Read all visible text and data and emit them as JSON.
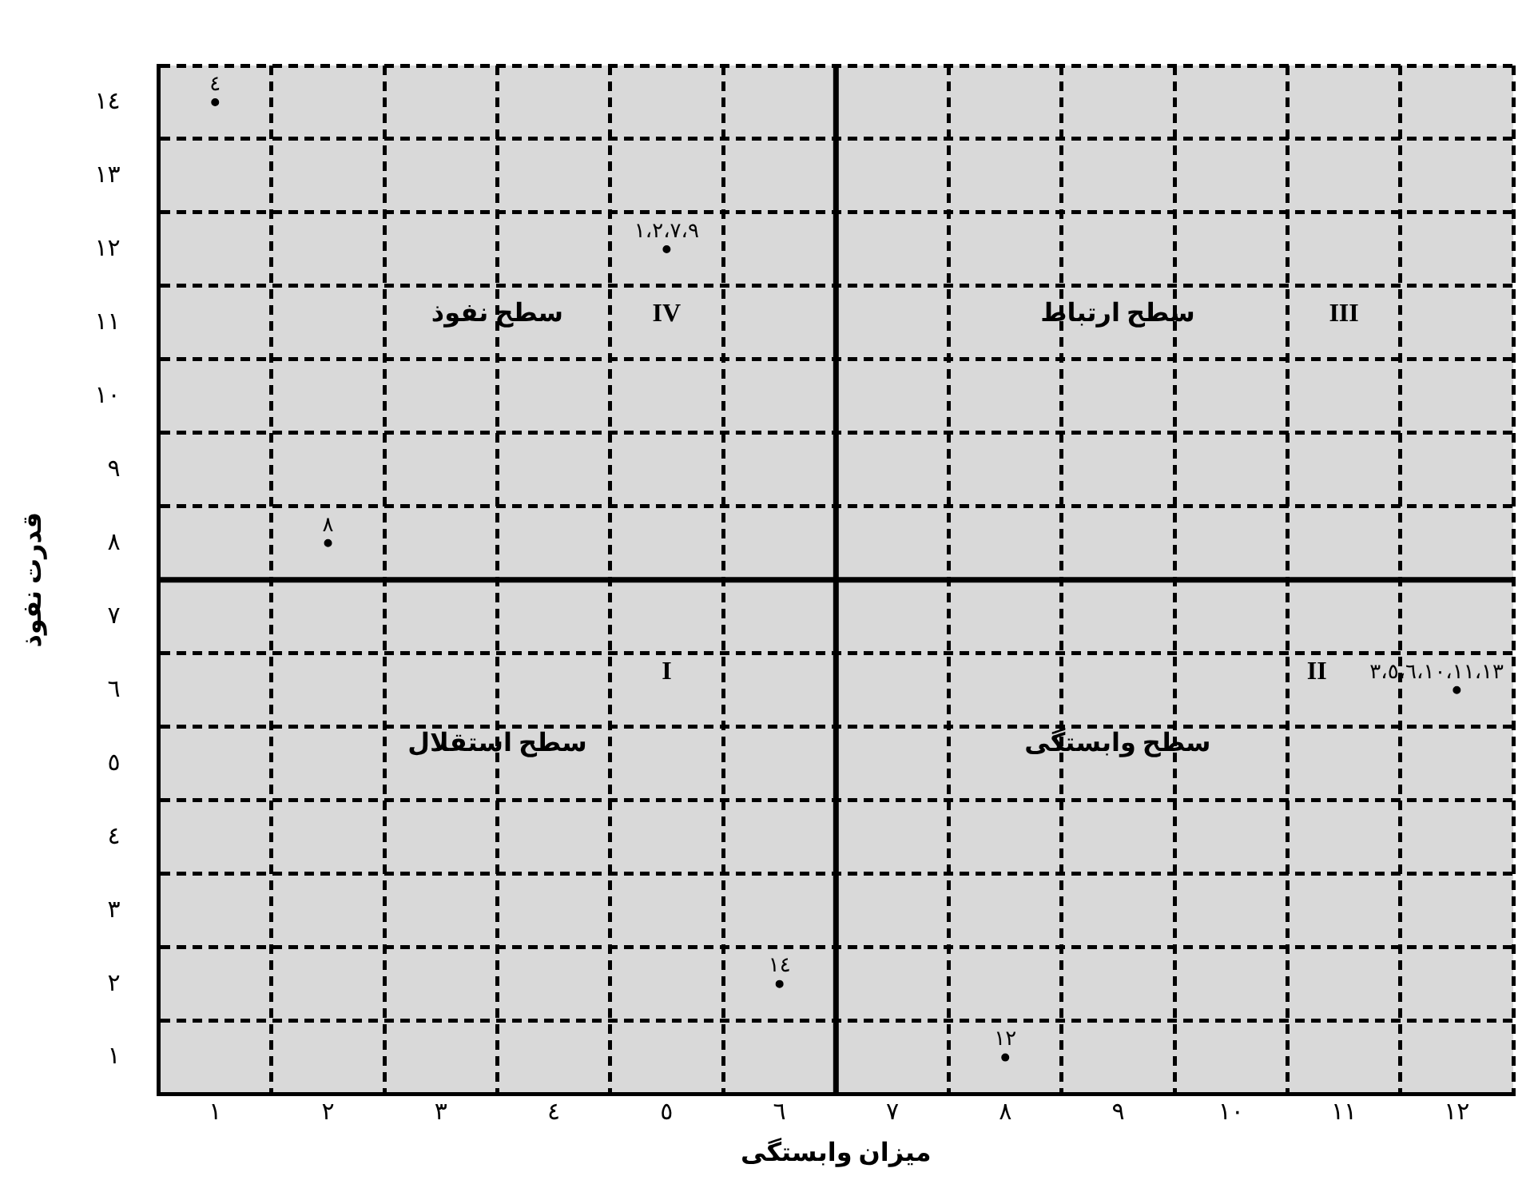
{
  "chart_data": {
    "type": "scatter",
    "xlabel": "میزان وابستگی",
    "ylabel": "قدرت نفوذ",
    "x": [
      1,
      2,
      5,
      12,
      6,
      8
    ],
    "values": [
      14,
      8,
      12,
      6,
      2,
      1
    ],
    "grid": true,
    "xlim": [
      0.5,
      12.5
    ],
    "ylim": [
      0.5,
      14.5
    ],
    "xticks": [
      {
        "value": 0.5,
        "label": null
      },
      {
        "value": 1,
        "label": "١"
      },
      {
        "value": 1.5,
        "label": null
      },
      {
        "value": 2,
        "label": "٢"
      },
      {
        "value": 2.5,
        "label": null
      },
      {
        "value": 3,
        "label": "٣"
      },
      {
        "value": 3.5,
        "label": null
      },
      {
        "value": 4,
        "label": "٤"
      },
      {
        "value": 4.5,
        "label": null
      },
      {
        "value": 5,
        "label": "٥"
      },
      {
        "value": 5.5,
        "label": null
      },
      {
        "value": 6,
        "label": "٦"
      },
      {
        "value": 7,
        "label": "٧"
      },
      {
        "value": 7.5,
        "label": null
      },
      {
        "value": 8,
        "label": "٨"
      },
      {
        "value": 8.5,
        "label": null
      },
      {
        "value": 9,
        "label": "٩"
      },
      {
        "value": 9.5,
        "label": null
      },
      {
        "value": 10,
        "label": "١٠"
      },
      {
        "value": 10.5,
        "label": null
      },
      {
        "value": 11,
        "label": "١١"
      },
      {
        "value": 11.5,
        "label": null
      },
      {
        "value": 12,
        "label": "١٢"
      },
      {
        "value": 12.5,
        "label": null
      }
    ],
    "yticks": [
      {
        "value": 0.5,
        "label": null
      },
      {
        "value": 1,
        "label": "١"
      },
      {
        "value": 1.5,
        "label": null
      },
      {
        "value": 2,
        "label": "٢"
      },
      {
        "value": 2.5,
        "label": null
      },
      {
        "value": 3,
        "label": "٣"
      },
      {
        "value": 3.5,
        "label": null
      },
      {
        "value": 4,
        "label": "٤"
      },
      {
        "value": 4.5,
        "label": null
      },
      {
        "value": 5,
        "label": "٥"
      },
      {
        "value": 5.5,
        "label": null
      },
      {
        "value": 6,
        "label": "٦"
      },
      {
        "value": 6.5,
        "label": null
      },
      {
        "value": 7,
        "label": "٧"
      },
      {
        "value": 8,
        "label": "٨"
      },
      {
        "value": 8.5,
        "label": null
      },
      {
        "value": 9,
        "label": "٩"
      },
      {
        "value": 9.5,
        "label": null
      },
      {
        "value": 10,
        "label": "١٠"
      },
      {
        "value": 10.5,
        "label": null
      },
      {
        "value": 11,
        "label": "١١"
      },
      {
        "value": 11.5,
        "label": null
      },
      {
        "value": 12,
        "label": "١٢"
      },
      {
        "value": 12.5,
        "label": null
      },
      {
        "value": 13,
        "label": "١٣"
      },
      {
        "value": 13.5,
        "label": null
      },
      {
        "value": 14,
        "label": "١٤"
      },
      {
        "value": 14.5,
        "label": null
      }
    ],
    "ref_lines": [
      {
        "axis": "x",
        "value": 6.5,
        "color": "#000000",
        "line_style": "solid"
      },
      {
        "axis": "y",
        "value": 7.5,
        "color": "#000000",
        "line_style": "solid"
      }
    ],
    "annotations": [
      {
        "text": "٤",
        "x": 1,
        "y": 14
      },
      {
        "text": "٨",
        "x": 2,
        "y": 8
      },
      {
        "text": "١،٢،٧،٩",
        "x": 5,
        "y": 12
      },
      {
        "text": "٣،٥،٦،١٠،١١،١٣",
        "x": 12,
        "y": 6
      },
      {
        "text": "١٤",
        "x": 6,
        "y": 2
      },
      {
        "text": "١٢",
        "x": 8,
        "y": 1
      },
      "سطح نفوذ",
      "IV",
      "سطح ارتباط",
      "III",
      "I",
      "سطح استقلال",
      "II",
      "سطح وابستگی"
    ]
  }
}
